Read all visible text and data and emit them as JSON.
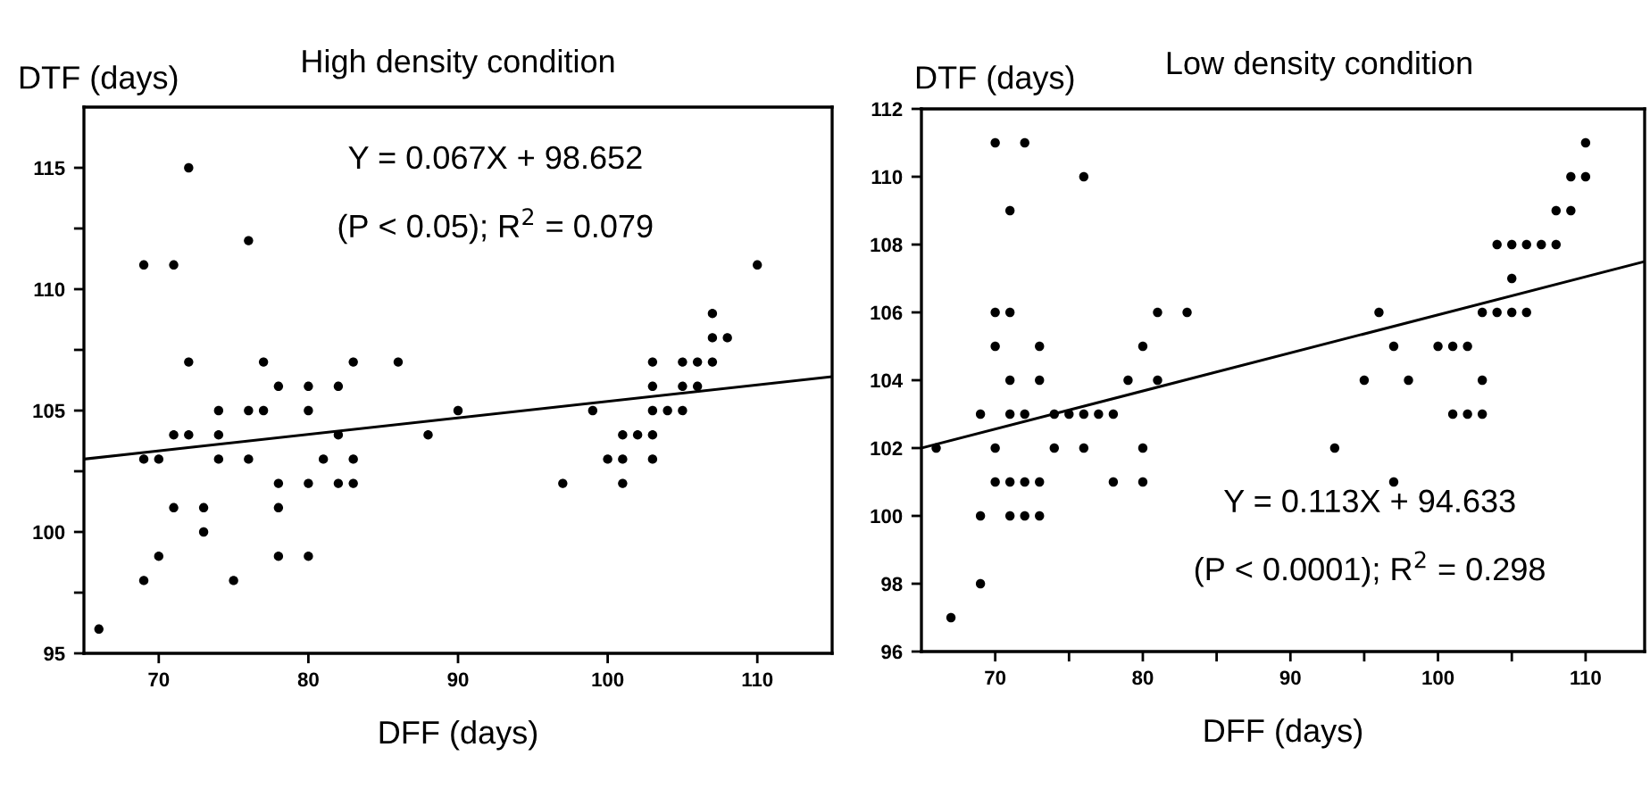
{
  "chart_data": [
    {
      "type": "scatter",
      "title": "High density condition",
      "xlabel": "DFF (days)",
      "ylabel": "DTF (days)",
      "xlim": [
        65,
        115
      ],
      "ylim": [
        95,
        117.5
      ],
      "xticks": [
        70,
        80,
        90,
        100,
        110
      ],
      "yticks": [
        95,
        {
          "value": 97.5,
          "label": null
        },
        100,
        {
          "value": 102.5,
          "label": null
        },
        105,
        {
          "value": 107.5,
          "label": null
        },
        110,
        {
          "value": 112.5,
          "label": null
        },
        115
      ],
      "grid": false,
      "marker": "circle",
      "annotations": [
        "Y = 0.067X + 98.652",
        "(P < 0.05); R$^{2}$ = 0.079"
      ],
      "series": [
        {
          "color": "#000000",
          "x": [
            72,
            76,
            69,
            71,
            72,
            77,
            83,
            86,
            78,
            80,
            82,
            74,
            76,
            77,
            80,
            90,
            71,
            72,
            74,
            82,
            88,
            69,
            70,
            74,
            76,
            81,
            83,
            78,
            80,
            82,
            83,
            71,
            73,
            78,
            73,
            70,
            78,
            80,
            69,
            75,
            66,
            110,
            107,
            107,
            108,
            103,
            105,
            106,
            107,
            103,
            105,
            106,
            99,
            103,
            104,
            105,
            101,
            102,
            103,
            100,
            101,
            103,
            97,
            101
          ],
          "values": [
            115,
            112,
            111,
            111,
            107,
            107,
            107,
            107,
            106,
            106,
            106,
            105,
            105,
            105,
            105,
            105,
            104,
            104,
            104,
            104,
            104,
            103,
            103,
            103,
            103,
            103,
            103,
            102,
            102,
            102,
            102,
            101,
            101,
            101,
            100,
            99,
            99,
            99,
            98,
            98,
            96,
            111,
            109,
            108,
            108,
            107,
            107,
            107,
            107,
            106,
            106,
            106,
            105,
            105,
            105,
            105,
            104,
            104,
            104,
            103,
            103,
            103,
            102,
            102
          ]
        },
        {
          "type": "line",
          "color": "#000000",
          "line_style": "solid",
          "marker": "none",
          "x": [
            65,
            115
          ],
          "values": [
            103.0,
            106.4
          ]
        }
      ]
    },
    {
      "type": "scatter",
      "title": "Low density condition",
      "xlabel": "DFF (days)",
      "ylabel": "DTF (days)",
      "xlim": [
        65,
        114
      ],
      "ylim": [
        96,
        112
      ],
      "xticks": [
        70,
        {
          "value": 75,
          "label": null
        },
        80,
        {
          "value": 85,
          "label": null
        },
        90,
        {
          "value": 95,
          "label": null
        },
        100,
        {
          "value": 105,
          "label": null
        },
        110
      ],
      "yticks": [
        96,
        98,
        100,
        102,
        104,
        106,
        108,
        110,
        112
      ],
      "grid": false,
      "marker": "circle",
      "annotations": [
        "Y = 0.113X + 94.633",
        "(P < 0.0001); R$^{2}$ = 0.298"
      ],
      "series": [
        {
          "color": "#000000",
          "x": [
            70,
            72,
            76,
            71,
            70,
            71,
            81,
            83,
            70,
            73,
            80,
            71,
            73,
            79,
            81,
            69,
            71,
            72,
            74,
            75,
            76,
            77,
            78,
            66,
            70,
            74,
            76,
            80,
            70,
            71,
            72,
            73,
            78,
            80,
            69,
            71,
            72,
            73,
            69,
            67,
            110,
            109,
            110,
            108,
            109,
            104,
            105,
            106,
            107,
            108,
            105,
            96,
            103,
            104,
            105,
            106,
            97,
            100,
            101,
            102,
            95,
            98,
            103,
            101,
            102,
            103,
            93,
            97
          ],
          "values": [
            111,
            111,
            110,
            109,
            106,
            106,
            106,
            106,
            105,
            105,
            105,
            104,
            104,
            104,
            104,
            103,
            103,
            103,
            103,
            103,
            103,
            103,
            103,
            102,
            102,
            102,
            102,
            102,
            101,
            101,
            101,
            101,
            101,
            101,
            100,
            100,
            100,
            100,
            98,
            97,
            111,
            110,
            110,
            109,
            109,
            108,
            108,
            108,
            108,
            108,
            107,
            106,
            106,
            106,
            106,
            106,
            105,
            105,
            105,
            105,
            104,
            104,
            104,
            103,
            103,
            103,
            102,
            101
          ]
        },
        {
          "type": "line",
          "color": "#000000",
          "line_style": "solid",
          "marker": "none",
          "x": [
            65,
            114
          ],
          "values": [
            102.0,
            107.5
          ]
        }
      ]
    }
  ]
}
